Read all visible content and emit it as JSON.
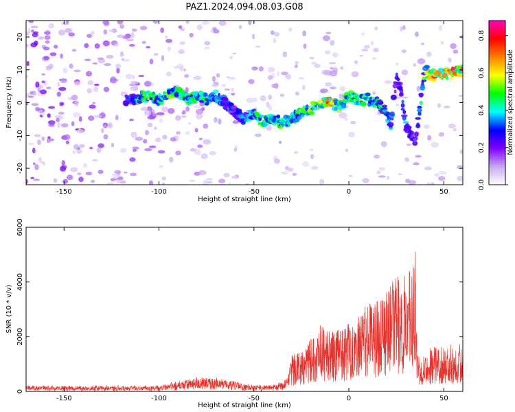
{
  "title": "PAZ1.2024.094.08.03.G08",
  "chart_data": [
    {
      "type": "heatmap",
      "xlabel": "Height of straight line (km)",
      "ylabel": "Frequency (Hz)",
      "xlim": [
        -170,
        60
      ],
      "ylim": [
        -25,
        25
      ],
      "xticks": [
        -150,
        -100,
        -50,
        0,
        50
      ],
      "yticks": [
        -20,
        -10,
        0,
        10,
        20
      ],
      "colorbar": {
        "label": "Normalized spectral amplitude",
        "range": [
          0.0,
          0.88
        ],
        "ticks": [
          0.0,
          0.2,
          0.4,
          0.6,
          0.8
        ],
        "colormap": [
          "#ffffff",
          "#c8a8f0",
          "#8000ff",
          "#0000ff",
          "#00ffff",
          "#00ff00",
          "#ffff00",
          "#ff8000",
          "#ff0000",
          "#ff00c0"
        ]
      },
      "ridge": {
        "x": [
          -115,
          -105,
          -100,
          -95,
          -90,
          -85,
          -80,
          -75,
          -70,
          -65,
          -60,
          -55,
          -50,
          -45,
          -40,
          -35,
          -30,
          -25,
          -20,
          -15,
          -10,
          -5,
          0,
          5,
          10,
          15,
          20,
          22,
          25,
          27,
          30,
          32,
          35,
          40,
          45,
          50,
          55,
          60
        ],
        "y": [
          1,
          2,
          1,
          3,
          3,
          1,
          2,
          1,
          2,
          0,
          -3,
          -5,
          -3,
          -6,
          -5,
          -6,
          -5,
          -3,
          -2,
          0,
          0,
          -1,
          2,
          1,
          1,
          0,
          -3,
          -8,
          8,
          5,
          -7,
          -9,
          -12,
          10,
          8,
          9,
          9,
          10
        ],
        "amplitude": [
          0.3,
          0.55,
          0.4,
          0.55,
          0.5,
          0.45,
          0.5,
          0.45,
          0.4,
          0.35,
          0.3,
          0.35,
          0.4,
          0.55,
          0.45,
          0.5,
          0.45,
          0.5,
          0.55,
          0.6,
          0.75,
          0.55,
          0.45,
          0.6,
          0.5,
          0.45,
          0.4,
          0.35,
          0.3,
          0.3,
          0.35,
          0.3,
          0.3,
          0.5,
          0.75,
          0.7,
          0.75,
          0.7
        ]
      }
    },
    {
      "type": "line",
      "xlabel": "Height of straight line (km)",
      "ylabel": "SNR (10 * v/v)",
      "xlim": [
        -170,
        60
      ],
      "ylim": [
        0,
        6000
      ],
      "xticks": [
        -150,
        -100,
        -50,
        0,
        50
      ],
      "yticks": [
        0,
        2000,
        4000,
        6000
      ],
      "color": "#e8322d",
      "envelope": {
        "x": [
          -170,
          -100,
          -90,
          -80,
          -70,
          -60,
          -55,
          -45,
          -38,
          -32,
          -30,
          -25,
          -20,
          -15,
          -10,
          -5,
          0,
          5,
          10,
          15,
          20,
          25,
          30,
          34,
          35,
          36,
          40,
          45,
          50,
          55,
          60
        ],
        "y": [
          200,
          200,
          350,
          500,
          480,
          380,
          260,
          220,
          250,
          500,
          1400,
          1500,
          2000,
          2500,
          2200,
          2300,
          2600,
          2800,
          3200,
          3500,
          3800,
          4200,
          4300,
          4700,
          5200,
          1400,
          1500,
          1700,
          1600,
          1800,
          1700
        ]
      }
    }
  ]
}
